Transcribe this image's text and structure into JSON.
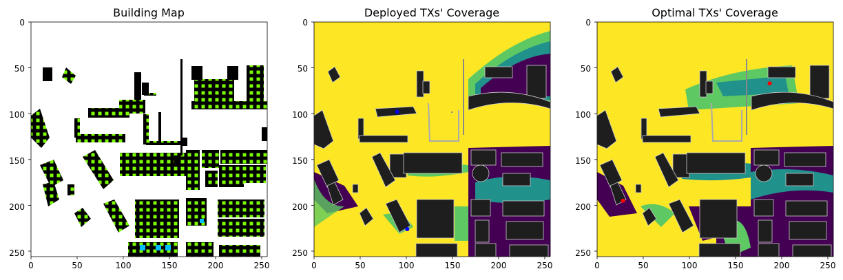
{
  "figure": {
    "colors": {
      "building_map_bg": "#ffffff",
      "building": "#000000",
      "building_dot": "#7cfc00",
      "building_dot_alt": "#2ecc40",
      "building_dot_blue": "#00bfff",
      "coverage_high": "#fde725",
      "coverage_mid": "#5ec962",
      "coverage_low": "#21918c",
      "coverage_none": "#440154",
      "building_gray": "#1e1e1e",
      "deployed_tx": "#0000ff",
      "optimal_tx": "#ff0000"
    }
  },
  "chart_data": [
    {
      "type": "heatmap",
      "title": "Building Map",
      "xlabel": "",
      "ylabel": "",
      "xlim": [
        0,
        256
      ],
      "ylim": [
        256,
        0
      ],
      "xticks": [
        "0",
        "50",
        "100",
        "150",
        "200",
        "250"
      ],
      "yticks": [
        "0",
        "50",
        "100",
        "150",
        "200",
        "250"
      ],
      "grid": false,
      "colormap": "binary buildings with green/blue grid markers"
    },
    {
      "type": "heatmap",
      "title": "Deployed TXs' Coverage",
      "xlabel": "",
      "ylabel": "",
      "xlim": [
        0,
        256
      ],
      "ylim": [
        256,
        0
      ],
      "xticks": [
        "0",
        "50",
        "100",
        "150",
        "200",
        "250"
      ],
      "yticks": [
        "0",
        "50",
        "100",
        "150",
        "200",
        "250"
      ],
      "grid": false,
      "colormap": "viridis",
      "tx_points": [
        {
          "x": 90,
          "y": 98,
          "color": "#0000ff"
        },
        {
          "x": 101,
          "y": 226,
          "color": "#0000ff"
        }
      ]
    },
    {
      "type": "heatmap",
      "title": "Optimal TXs' Coverage",
      "xlabel": "",
      "ylabel": "",
      "xlim": [
        0,
        256
      ],
      "ylim": [
        256,
        0
      ],
      "xticks": [
        "0",
        "50",
        "100",
        "150",
        "200",
        "250"
      ],
      "yticks": [
        "0",
        "50",
        "100",
        "150",
        "200",
        "250"
      ],
      "grid": false,
      "colormap": "viridis",
      "tx_points": [
        {
          "x": 187,
          "y": 67,
          "color": "#ff0000"
        },
        {
          "x": 28,
          "y": 195,
          "color": "#ff0000"
        }
      ]
    }
  ]
}
